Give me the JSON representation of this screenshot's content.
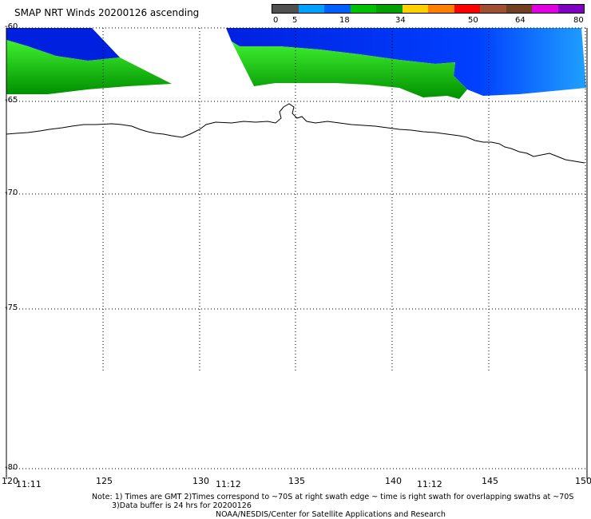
{
  "title": "SMAP NRT Winds 20200126 ascending",
  "colorbar": {
    "labels": [
      "0",
      "5",
      "18",
      "34",
      "50",
      "64",
      "80"
    ],
    "colors": [
      "#505050",
      "#00a0ff",
      "#0060ff",
      "#00c000",
      "#00a000",
      "#ffd000",
      "#ff8000",
      "#ff0000",
      "#a05030",
      "#704020",
      "#e000e0",
      "#8000c0"
    ]
  },
  "axes": {
    "lat_labels": [
      "-60",
      "-65",
      "-70",
      "-75",
      "-80"
    ],
    "lon_labels": [
      "120",
      "125",
      "130",
      "135",
      "140",
      "145",
      "150"
    ],
    "times": [
      "11:11",
      "11:12",
      "11:12"
    ]
  },
  "notes": {
    "line1": "Note: 1) Times are GMT 2)Times correspond to ~70S at right swath edge ~ time is right swath for overlapping swaths at ~70S",
    "line2": "3)Data buffer is 24 hrs for 20200126",
    "line3": "NOAA/NESDIS/Center for Satellite Applications and Research"
  }
}
